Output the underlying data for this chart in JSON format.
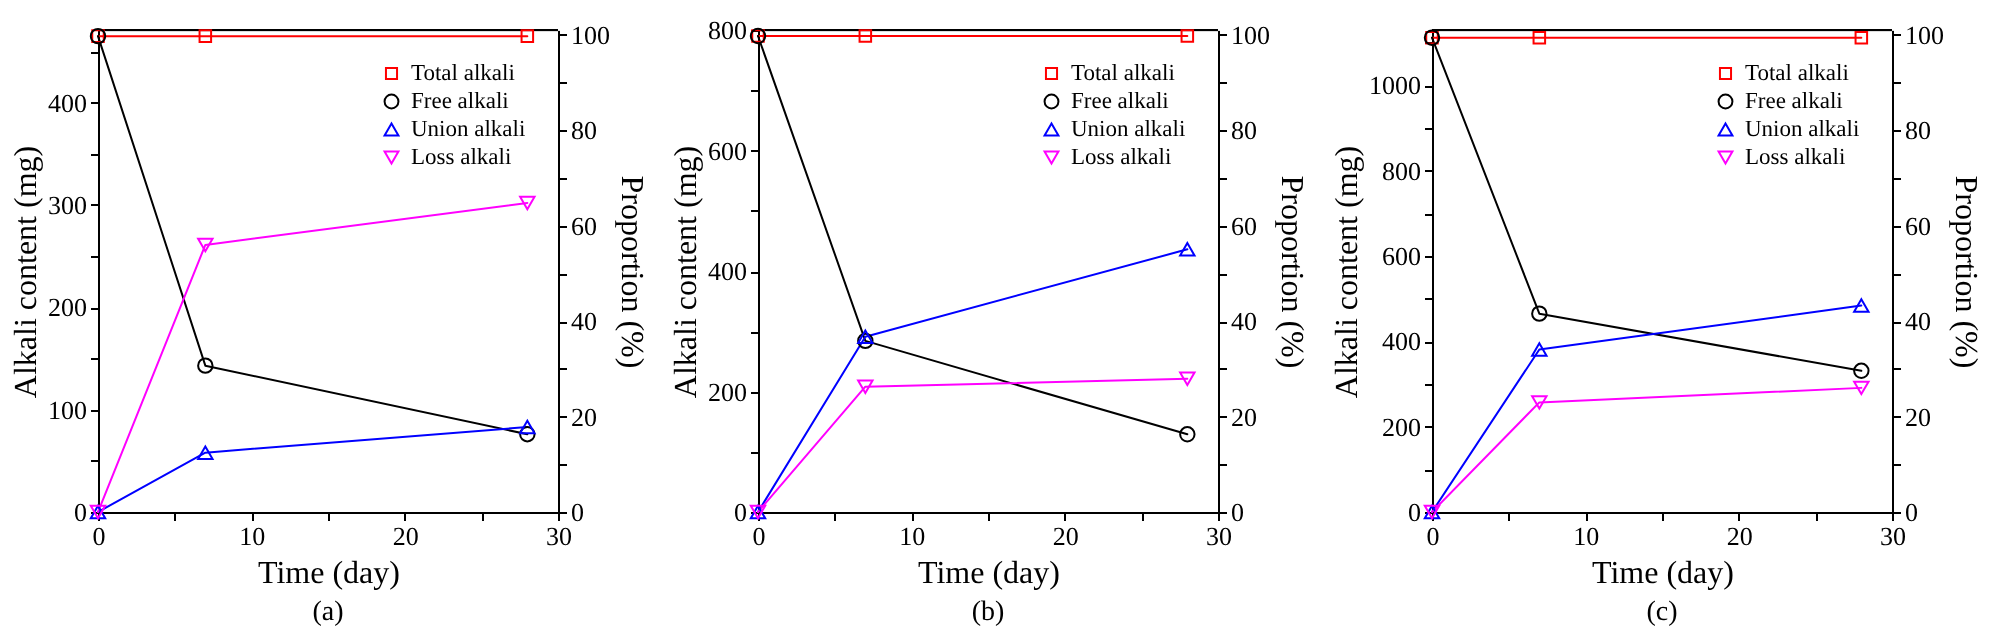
{
  "chart_data": [
    {
      "type": "line",
      "annotations": [
        "(a)"
      ],
      "xlabel": "Time (day)",
      "ylabel": "Alkali content (mg)",
      "y2label": "Proportion (%)",
      "x": [
        0,
        7,
        28
      ],
      "xlim": [
        0,
        30
      ],
      "xticks": [
        0,
        {
          "value": 5,
          "label": null
        },
        10,
        {
          "value": 15,
          "label": null
        },
        20,
        {
          "value": 25,
          "label": null
        },
        30
      ],
      "ylim": [
        0,
        471
      ],
      "yticks": [
        0,
        {
          "value": 50,
          "label": null
        },
        100,
        {
          "value": 150,
          "label": null
        },
        200,
        {
          "value": 250,
          "label": null
        },
        300,
        {
          "value": 350,
          "label": null
        },
        400,
        {
          "value": 450,
          "label": null
        }
      ],
      "y2lim": [
        0,
        101
      ],
      "y2ticks": [
        0,
        {
          "value": 10,
          "label": null
        },
        20,
        {
          "value": 30,
          "label": null
        },
        40,
        {
          "value": 50,
          "label": null
        },
        60,
        {
          "value": 70,
          "label": null
        },
        80,
        {
          "value": 90,
          "label": null
        },
        100
      ],
      "grid": false,
      "legend": "top right",
      "line_style": "solid",
      "series": [
        {
          "name": "Total alkali",
          "color": "#ff0000",
          "marker": "square",
          "values": [
            465,
            465,
            465
          ]
        },
        {
          "name": "Free alkali",
          "color": "#000000",
          "marker": "circle",
          "values": [
            465,
            143,
            76
          ]
        },
        {
          "name": "Union alkali",
          "color": "#0000ff",
          "marker": "triangle",
          "values": [
            0,
            58,
            83
          ]
        },
        {
          "name": "Loss alkali",
          "color": "#ff00ff",
          "marker": "triangle-down",
          "values": [
            0,
            261,
            302
          ]
        }
      ]
    },
    {
      "type": "line",
      "annotations": [
        "(b)"
      ],
      "xlabel": "Time (day)",
      "ylabel": "Alkali content (mg)",
      "y2label": "Proportion (%)",
      "x": [
        0,
        7,
        28
      ],
      "xlim": [
        0,
        30
      ],
      "xticks": [
        0,
        {
          "value": 5,
          "label": null
        },
        10,
        {
          "value": 15,
          "label": null
        },
        20,
        {
          "value": 25,
          "label": null
        },
        30
      ],
      "ylim": [
        0,
        800
      ],
      "yticks": [
        0,
        {
          "value": 100,
          "label": null
        },
        200,
        {
          "value": 300,
          "label": null
        },
        400,
        {
          "value": 500,
          "label": null
        },
        600,
        {
          "value": 700,
          "label": null
        },
        800
      ],
      "y2lim": [
        0,
        101
      ],
      "y2ticks": [
        0,
        {
          "value": 10,
          "label": null
        },
        20,
        {
          "value": 30,
          "label": null
        },
        40,
        {
          "value": 50,
          "label": null
        },
        60,
        {
          "value": 70,
          "label": null
        },
        80,
        {
          "value": 90,
          "label": null
        },
        100
      ],
      "grid": false,
      "legend": "top right",
      "line_style": "solid",
      "series": [
        {
          "name": "Total alkali",
          "color": "#ff0000",
          "marker": "square",
          "values": [
            790,
            790,
            790
          ]
        },
        {
          "name": "Free alkali",
          "color": "#000000",
          "marker": "circle",
          "values": [
            790,
            284,
            129
          ]
        },
        {
          "name": "Union alkali",
          "color": "#0000ff",
          "marker": "triangle",
          "values": [
            0,
            291,
            436
          ]
        },
        {
          "name": "Loss alkali",
          "color": "#ff00ff",
          "marker": "triangle-down",
          "values": [
            0,
            208,
            221
          ]
        }
      ]
    },
    {
      "type": "line",
      "annotations": [
        "(c)"
      ],
      "xlabel": "Time (day)",
      "ylabel": "Alkali content (mg)",
      "y2label": "Proportion (%)",
      "x": [
        0,
        7,
        28
      ],
      "xlim": [
        0,
        30
      ],
      "xticks": [
        0,
        {
          "value": 5,
          "label": null
        },
        10,
        {
          "value": 15,
          "label": null
        },
        20,
        {
          "value": 25,
          "label": null
        },
        30
      ],
      "ylim": [
        0,
        1130
      ],
      "yticks": [
        0,
        {
          "value": 100,
          "label": null
        },
        200,
        {
          "value": 300,
          "label": null
        },
        400,
        {
          "value": 500,
          "label": null
        },
        600,
        {
          "value": 700,
          "label": null
        },
        800,
        {
          "value": 900,
          "label": null
        },
        1000,
        {
          "value": 1100,
          "label": null
        }
      ],
      "y2lim": [
        0,
        101
      ],
      "y2ticks": [
        0,
        {
          "value": 10,
          "label": null
        },
        20,
        {
          "value": 30,
          "label": null
        },
        40,
        {
          "value": 50,
          "label": null
        },
        60,
        {
          "value": 70,
          "label": null
        },
        80,
        {
          "value": 90,
          "label": null
        },
        100
      ],
      "grid": false,
      "legend": "top right",
      "line_style": "solid",
      "series": [
        {
          "name": "Total alkali",
          "color": "#ff0000",
          "marker": "square",
          "values": [
            1112,
            1112,
            1112
          ]
        },
        {
          "name": "Free alkali",
          "color": "#000000",
          "marker": "circle",
          "values": [
            1112,
            465,
            331
          ]
        },
        {
          "name": "Union alkali",
          "color": "#0000ff",
          "marker": "triangle",
          "values": [
            0,
            381,
            484
          ]
        },
        {
          "name": "Loss alkali",
          "color": "#ff00ff",
          "marker": "triangle-down",
          "values": [
            0,
            257,
            291
          ]
        }
      ]
    }
  ]
}
